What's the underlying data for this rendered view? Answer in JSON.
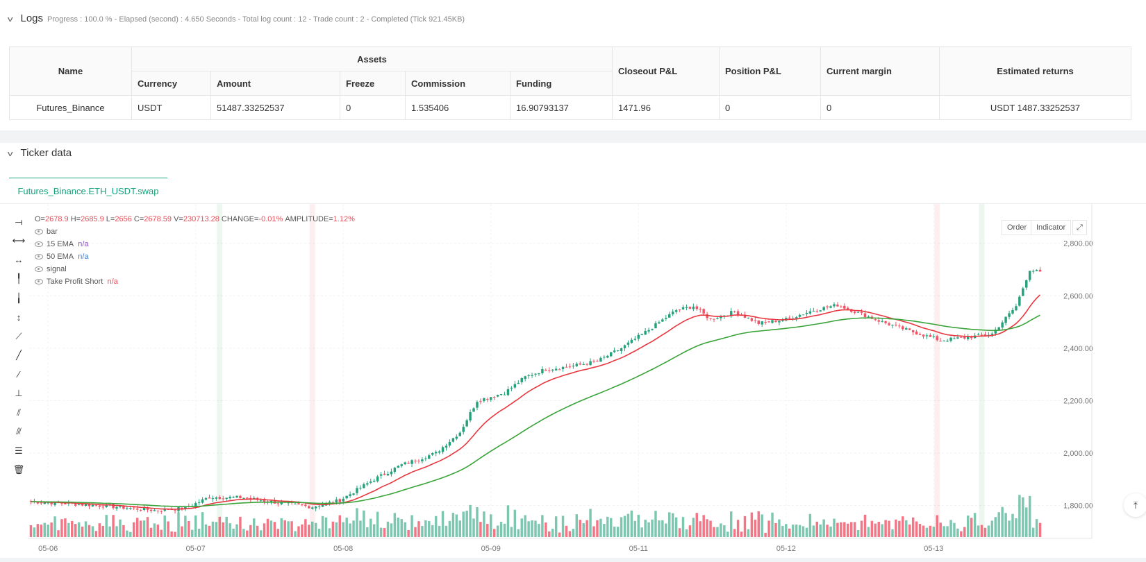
{
  "logs": {
    "title": "Logs",
    "summary": "Progress : 100.0 % - Elapsed (second) : 4.650  Seconds - Total log count : 12 - Trade count : 2 - Completed (Tick 921.45KB)"
  },
  "assets_table": {
    "group_header": "Assets",
    "headers": {
      "name": "Name",
      "currency": "Currency",
      "amount": "Amount",
      "freeze": "Freeze",
      "commission": "Commission",
      "funding": "Funding",
      "closeout": "Closeout P&L",
      "position": "Position P&L",
      "margin": "Current margin",
      "returns": "Estimated returns"
    },
    "row": {
      "name": "Futures_Binance",
      "currency": "USDT",
      "amount": "51487.33252537",
      "freeze": "0",
      "commission": "1.535406",
      "funding": "16.90793137",
      "closeout": "1471.96",
      "position": "0",
      "margin": "0",
      "returns": "USDT 1487.33252537"
    }
  },
  "ticker": {
    "title": "Ticker data",
    "tab": "Futures_Binance.ETH_USDT.swap",
    "buttons": {
      "order": "Order",
      "indicator": "Indicator"
    },
    "ohlc": {
      "o_label": "O=",
      "o": "2678.9",
      "h_label": "H=",
      "h": "2685.9",
      "l_label": "L=",
      "l": "2656",
      "c_label": "C=",
      "c": "2678.59",
      "v_label": "V=",
      "v": "230713.28",
      "change_label": "CHANGE=",
      "change": "-0.01%",
      "amp_label": "AMPLITUDE=",
      "amp": "1.12%"
    },
    "legend": [
      {
        "name": "bar",
        "value": ""
      },
      {
        "name": "15 EMA",
        "value": "n/a"
      },
      {
        "name": "50 EMA",
        "value": "n/a"
      },
      {
        "name": "signal",
        "value": ""
      },
      {
        "name": "Take Profit Short",
        "value": "n/a"
      }
    ]
  },
  "colors": {
    "up": "#26a17b",
    "down": "#ef5466",
    "ema15": "#e8363f",
    "ema50": "#3aa33a",
    "accent": "#12a37a"
  },
  "chart_data": {
    "type": "candlestick",
    "y_axis": {
      "min": 1680,
      "max": 2950,
      "ticks": [
        1800,
        2000,
        2200,
        2400,
        2600,
        2800
      ],
      "tick_labels": [
        "1,800.00",
        "2,000.00",
        "2,200.00",
        "2,400.00",
        "2,600.00",
        "2,800.00"
      ]
    },
    "x_labels": [
      "05-06",
      "05-07",
      "05-08",
      "05-09",
      "05-11",
      "05-12",
      "05-13"
    ],
    "x_label_bar_index": [
      5,
      48,
      91,
      134,
      177,
      220,
      263
    ],
    "bar_count": 295,
    "close_anchors": [
      [
        0,
        1815
      ],
      [
        20,
        1800
      ],
      [
        36,
        1782
      ],
      [
        45,
        1790
      ],
      [
        52,
        1832
      ],
      [
        62,
        1830
      ],
      [
        75,
        1805
      ],
      [
        82,
        1795
      ],
      [
        90,
        1820
      ],
      [
        100,
        1900
      ],
      [
        108,
        1955
      ],
      [
        118,
        2000
      ],
      [
        125,
        2080
      ],
      [
        130,
        2200
      ],
      [
        138,
        2230
      ],
      [
        144,
        2290
      ],
      [
        150,
        2320
      ],
      [
        157,
        2330
      ],
      [
        165,
        2350
      ],
      [
        172,
        2400
      ],
      [
        180,
        2470
      ],
      [
        188,
        2545
      ],
      [
        193,
        2560
      ],
      [
        198,
        2510
      ],
      [
        205,
        2540
      ],
      [
        212,
        2495
      ],
      [
        220,
        2510
      ],
      [
        228,
        2545
      ],
      [
        235,
        2565
      ],
      [
        240,
        2540
      ],
      [
        248,
        2500
      ],
      [
        255,
        2470
      ],
      [
        265,
        2430
      ],
      [
        272,
        2440
      ],
      [
        280,
        2455
      ],
      [
        287,
        2560
      ],
      [
        291,
        2700
      ],
      [
        295,
        2685
      ]
    ],
    "ema15_label": "15 EMA",
    "ema50_label": "50 EMA",
    "signal_bands": [
      {
        "bar": 55,
        "side": "long"
      },
      {
        "bar": 82,
        "side": "short"
      },
      {
        "bar": 264,
        "side": "short"
      },
      {
        "bar": 277,
        "side": "long"
      }
    ]
  }
}
